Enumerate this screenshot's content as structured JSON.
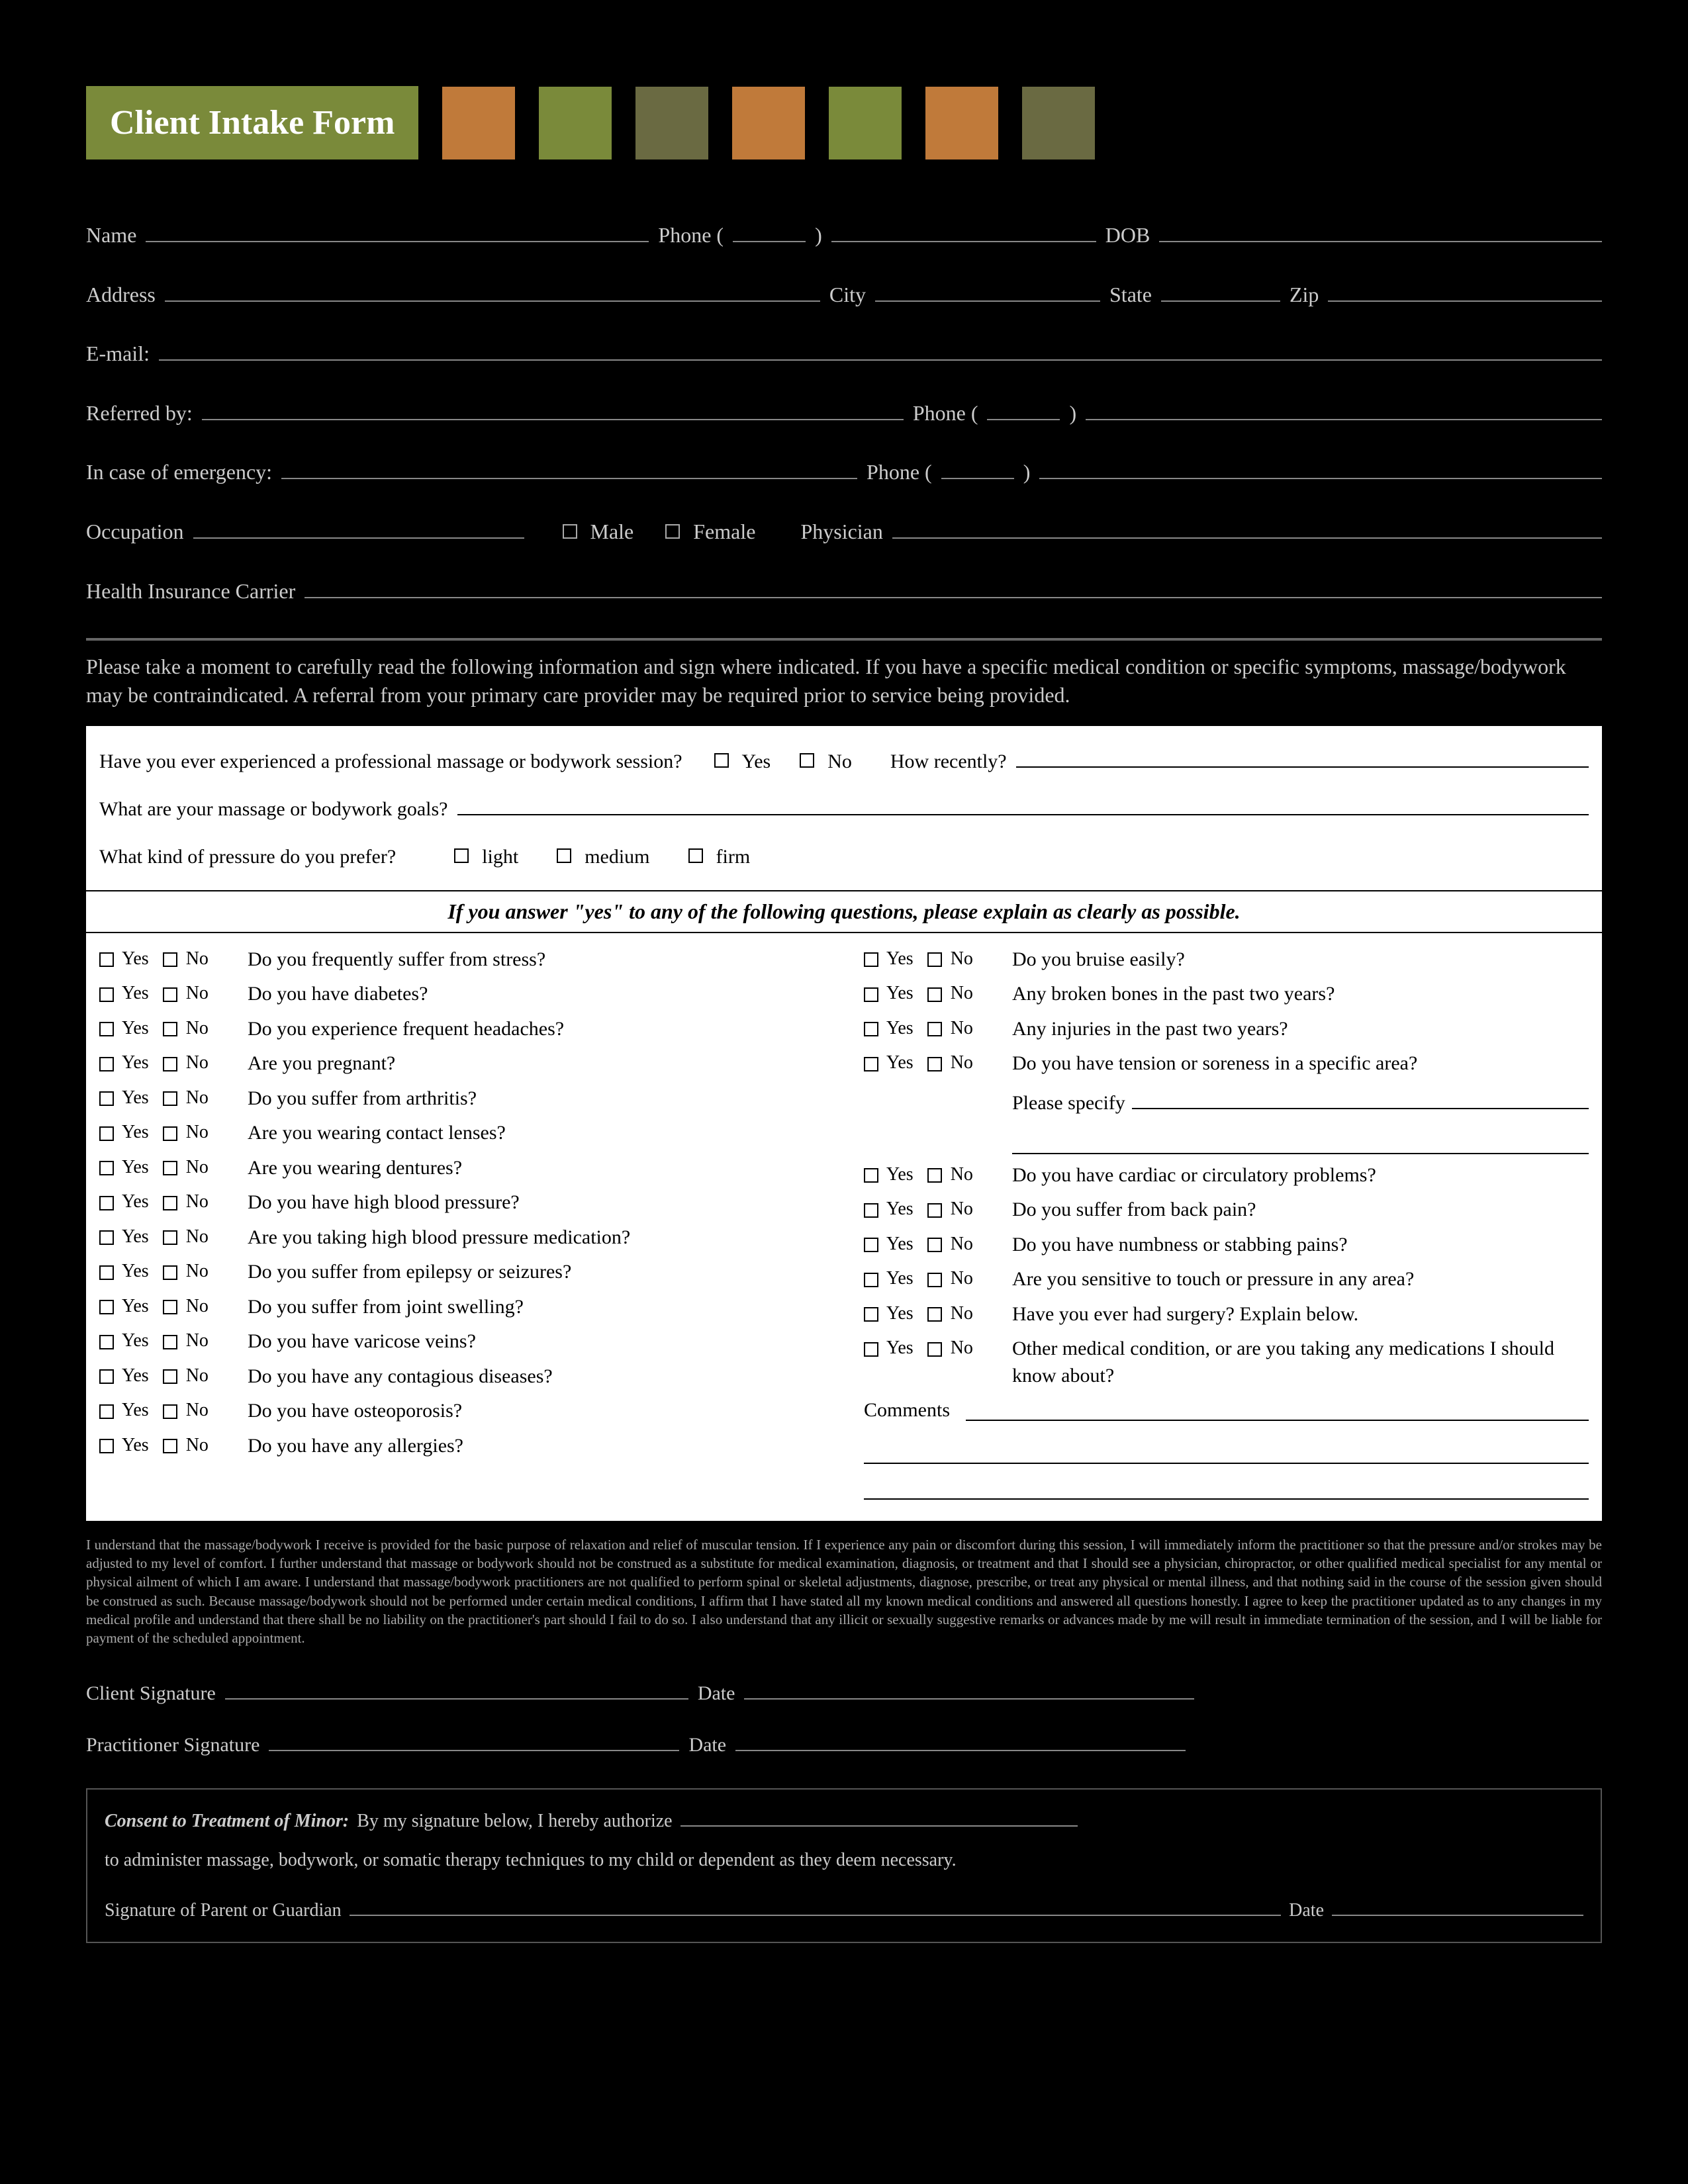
{
  "header": {
    "title": "Client Intake Form",
    "title_bg": "#7a8a3a",
    "swatch_colors": [
      "#c07a3a",
      "#7a8a3a",
      "#6a6a42",
      "#c07a3a",
      "#7a8a3a",
      "#c07a3a",
      "#6a6a42"
    ]
  },
  "fields": {
    "name": "Name",
    "phone": "Phone (",
    "phone_mid": ")",
    "dob": "DOB",
    "address": "Address",
    "city": "City",
    "state": "State",
    "zip": "Zip",
    "email": "E-mail:",
    "referred": "Referred by:",
    "phone2": "Phone (",
    "phone2_mid": ")",
    "emergency": "In case of emergency:",
    "phone3": "Phone (",
    "phone3_mid": ")",
    "occupation": "Occupation",
    "male": "Male",
    "female": "Female",
    "physician": "Physician",
    "insurance": "Health Insurance Carrier"
  },
  "instruction": "Please take a moment to carefully read the following information and sign where indicated. If you have a specific medical condition or specific symptoms, massage/bodywork may be contraindicated. A referral from your primary care provider may be required prior to service being provided.",
  "white": {
    "q1": "Have you ever experienced a professional massage or bodywork session?",
    "yes": "Yes",
    "no": "No",
    "how_recently": "How recently?",
    "goals": "What are your massage or bodywork goals?",
    "pressure": "What kind of pressure do you prefer?",
    "light": "light",
    "medium": "medium",
    "firm": "firm",
    "heading": "If you answer \"yes\" to any of the following questions, please explain as clearly as possible."
  },
  "questions_left": [
    "Do you frequently suffer from stress?",
    "Do you have diabetes?",
    "Do you experience frequent headaches?",
    "Are you pregnant?",
    "Do you suffer from arthritis?",
    "Are you wearing contact lenses?",
    "Are you wearing dentures?",
    "Do you have high blood pressure?",
    "Are you taking high blood pressure medication?",
    "Do you suffer from epilepsy or seizures?",
    "Do you suffer from joint swelling?",
    "Do you have varicose veins?",
    "Do you have any contagious diseases?",
    "Do you have osteoporosis?",
    "Do you have any allergies?"
  ],
  "questions_right": [
    "Do you bruise easily?",
    "Any broken bones in the past two years?",
    "Any injuries in the past two years?",
    "Do you have tension or soreness in a specific area?"
  ],
  "please_specify": "Please specify",
  "questions_right2": [
    "Do you have cardiac or circulatory problems?",
    "Do you suffer from back pain?",
    "Do you have numbness or stabbing pains?",
    "Are you sensitive to touch or pressure in any area?",
    "Have you ever had surgery? Explain below.",
    "Other medical condition, or are you taking any medications I should know about?"
  ],
  "comments": "Comments",
  "disclaimer": "I understand that the massage/bodywork I receive is provided for the basic purpose of relaxation and relief of muscular tension. If I experience any pain or discomfort during this session, I will immediately inform the practitioner so that the pressure and/or strokes may be adjusted to my level of comfort. I further understand that massage or bodywork should not be construed as a substitute for medical examination, diagnosis, or treatment and that I should see a physician, chiropractor, or other qualified medical specialist for any mental or physical ailment of which I am aware. I understand that massage/bodywork practitioners are not qualified to perform spinal or skeletal adjustments, diagnose, prescribe, or treat any physical or mental illness, and that nothing said in the course of the session given should be construed as such. Because massage/bodywork should not be performed under certain medical conditions, I affirm that I have stated all my known medical conditions and answered all questions honestly. I agree to keep the practitioner updated as to any changes in my medical profile and understand that there shall be no liability on the practitioner's part should I fail to do so. I also understand that any illicit or sexually suggestive remarks or advances made by me will result in immediate termination of the session, and I will be liable for payment of the scheduled appointment.",
  "sig": {
    "client": "Client Signature",
    "pract": "Practitioner Signature",
    "date": "Date"
  },
  "minor": {
    "lead": "Consent to Treatment of Minor:",
    "text1": "By my signature below, I hereby authorize",
    "text2": "to administer massage, bodywork, or somatic therapy techniques to my child or dependent as they deem necessary.",
    "sig": "Signature of Parent or Guardian",
    "date": "Date"
  }
}
